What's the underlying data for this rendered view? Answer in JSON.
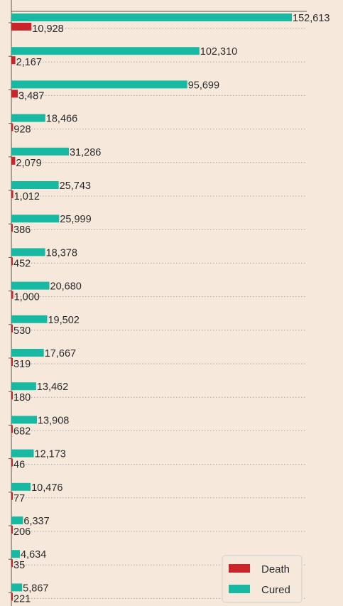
{
  "colors": {
    "background": "#f6e9dc",
    "cured": "#17b9a3",
    "death": "#c8262a",
    "grid": "#a8a8a8",
    "axis": "#555555"
  },
  "chart_data": {
    "type": "bar",
    "orientation": "horizontal",
    "grid": true,
    "legend_position": "bottom-right",
    "xlim": [
      0,
      170000
    ],
    "series": [
      {
        "name": "Cured",
        "values": [
          152613,
          102310,
          95699,
          18466,
          31286,
          25743,
          25999,
          18378,
          20680,
          19502,
          17667,
          13462,
          13908,
          12173,
          10476,
          6337,
          4634,
          5867
        ],
        "labels": [
          "152,613",
          "102,310",
          "95,699",
          "18,466",
          "31,286",
          "25,743",
          "25,999",
          "18,378",
          "20,680",
          "19,502",
          "17,667",
          "13,462",
          "13,908",
          "12,173",
          "10,476",
          "6,337",
          "4,634",
          "5,867"
        ]
      },
      {
        "name": "Death",
        "values": [
          10928,
          2167,
          3487,
          928,
          2079,
          1012,
          386,
          452,
          1000,
          530,
          319,
          180,
          682,
          46,
          77,
          206,
          35,
          221
        ],
        "labels": [
          "10,928",
          "2,167",
          "3,487",
          "928",
          "2,079",
          "1,012",
          "386",
          "452",
          "1,000",
          "530",
          "319",
          "180",
          "682",
          "46",
          "77",
          "206",
          "35",
          "221"
        ]
      }
    ]
  }
}
